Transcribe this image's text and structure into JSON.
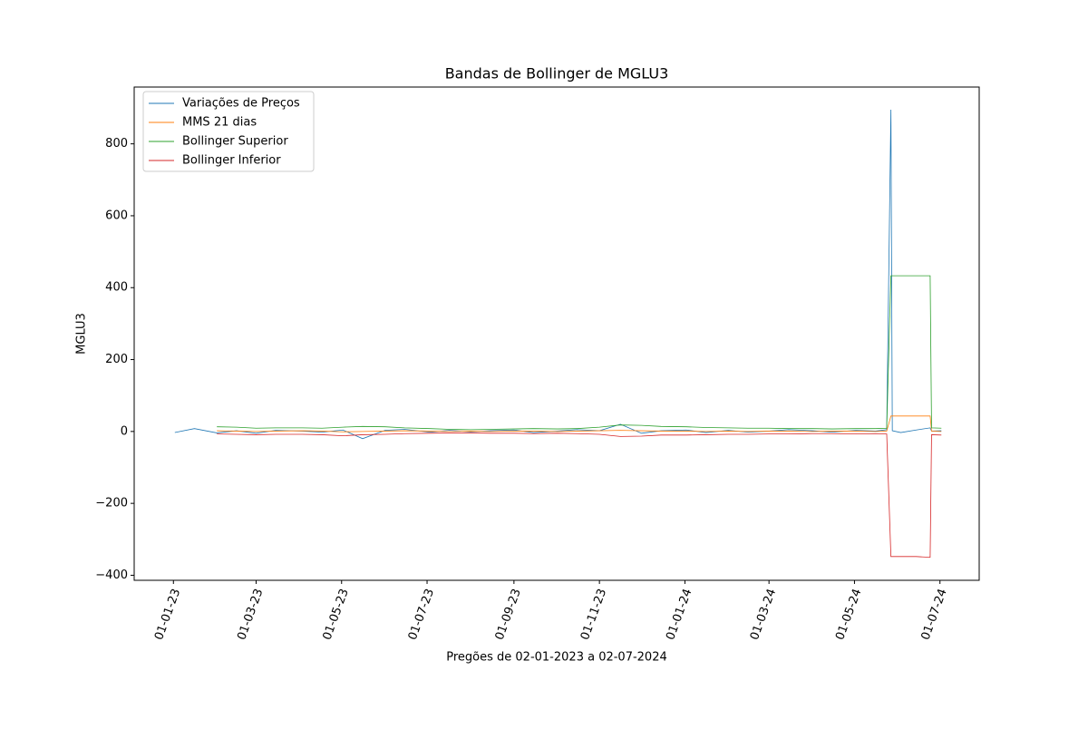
{
  "chart_data": {
    "type": "line",
    "title": "Bandas de Bollinger de MGLU3",
    "x_label": "Pregões de 02-01-2023 a 02-07-2024",
    "y_label": "MGLU3",
    "x": [
      "2023-01-02",
      "2023-01-16",
      "2023-02-01",
      "2023-02-15",
      "2023-03-01",
      "2023-03-15",
      "2023-04-03",
      "2023-04-17",
      "2023-05-02",
      "2023-05-16",
      "2023-06-01",
      "2023-06-15",
      "2023-07-03",
      "2023-07-17",
      "2023-08-01",
      "2023-08-15",
      "2023-09-01",
      "2023-09-15",
      "2023-10-02",
      "2023-10-16",
      "2023-11-01",
      "2023-11-16",
      "2023-12-01",
      "2023-12-15",
      "2024-01-02",
      "2024-01-16",
      "2024-02-01",
      "2024-02-15",
      "2024-03-01",
      "2024-03-15",
      "2024-04-01",
      "2024-04-15",
      "2024-05-02",
      "2024-05-16",
      "2024-05-24",
      "2024-05-27",
      "2024-05-28",
      "2024-06-03",
      "2024-06-14",
      "2024-06-24",
      "2024-06-25",
      "2024-07-02"
    ],
    "series": [
      {
        "name": "Variações de Preços",
        "color": "#1f77b4",
        "values": [
          -3,
          8,
          -4,
          2,
          -5,
          3,
          1,
          -2,
          4,
          -20,
          3,
          6,
          -2,
          3,
          -1,
          2,
          4,
          -3,
          1,
          5,
          2,
          20,
          -5,
          2,
          4,
          -3,
          3,
          -2,
          1,
          5,
          2,
          -2,
          3,
          1,
          5,
          895,
          2,
          -3,
          4,
          10,
          1,
          2
        ]
      },
      {
        "name": "MMS 21 dias",
        "color": "#ff7f0e",
        "values": [
          null,
          null,
          2,
          1,
          0,
          1,
          2,
          1,
          -1,
          0,
          1,
          2,
          1,
          0,
          1,
          0,
          1,
          1,
          0,
          1,
          2,
          3,
          2,
          1,
          1,
          0,
          1,
          0,
          1,
          1,
          0,
          1,
          1,
          0,
          1,
          43,
          43,
          43,
          43,
          43,
          1,
          0
        ]
      },
      {
        "name": "Bollinger Superior",
        "color": "#2ca02c",
        "values": [
          null,
          null,
          13,
          12,
          9,
          10,
          10,
          9,
          12,
          14,
          13,
          10,
          8,
          6,
          5,
          6,
          7,
          8,
          7,
          8,
          12,
          18,
          17,
          14,
          13,
          11,
          10,
          9,
          9,
          8,
          8,
          7,
          8,
          8,
          9,
          433,
          433,
          433,
          433,
          433,
          10,
          9
        ]
      },
      {
        "name": "Bollinger Inferior",
        "color": "#d62728",
        "values": [
          null,
          null,
          -7,
          -8,
          -9,
          -8,
          -8,
          -9,
          -12,
          -9,
          -8,
          -6,
          -5,
          -4,
          -4,
          -5,
          -5,
          -6,
          -5,
          -6,
          -8,
          -14,
          -13,
          -10,
          -10,
          -9,
          -8,
          -8,
          -7,
          -7,
          -6,
          -6,
          -7,
          -6,
          -7,
          -348,
          -348,
          -348,
          -348,
          -350,
          -9,
          -10
        ]
      }
    ],
    "xlim": [
      "2022-12-04",
      "2024-07-29"
    ],
    "xticks": [
      {
        "value": "2023-01-01",
        "label": "01-01-23"
      },
      {
        "value": "2023-03-01",
        "label": "01-03-23"
      },
      {
        "value": "2023-05-01",
        "label": "01-05-23"
      },
      {
        "value": "2023-07-01",
        "label": "01-07-23"
      },
      {
        "value": "2023-09-01",
        "label": "01-09-23"
      },
      {
        "value": "2023-11-01",
        "label": "01-11-23"
      },
      {
        "value": "2024-01-01",
        "label": "01-01-24"
      },
      {
        "value": "2024-03-01",
        "label": "01-03-24"
      },
      {
        "value": "2024-05-01",
        "label": "01-05-24"
      },
      {
        "value": "2024-07-01",
        "label": "01-07-24"
      }
    ],
    "ylim": [
      -414,
      958
    ],
    "yticks": [
      {
        "value": -400,
        "label": "−400"
      },
      {
        "value": -200,
        "label": "−200"
      },
      0,
      200,
      400,
      600,
      800
    ],
    "legend": "upper left"
  }
}
